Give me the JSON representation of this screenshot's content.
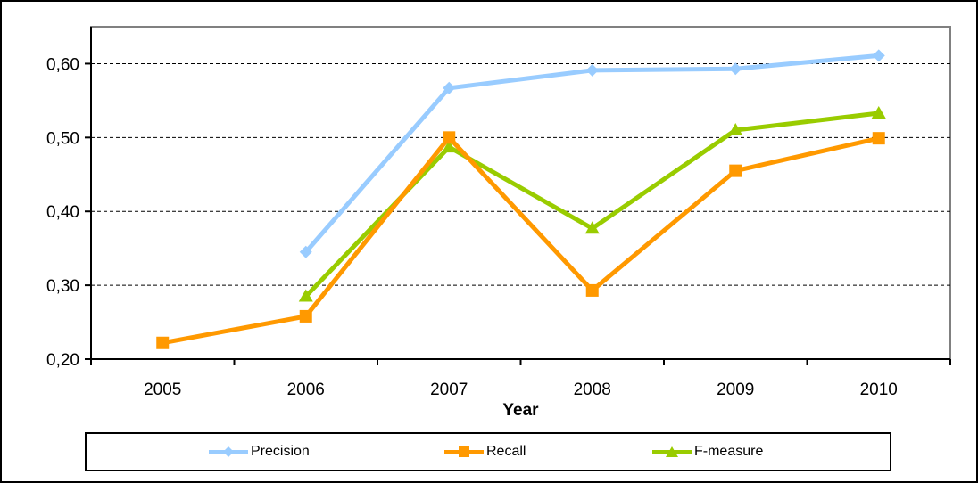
{
  "chart": {
    "background": "#FFFFFF",
    "plot_border_color": "#808080",
    "axis_color": "#000000",
    "gridline_color": "#000000",
    "outer_border_color": "#000000"
  },
  "chart_data": {
    "type": "line",
    "title": "",
    "xlabel": "Year",
    "ylabel": "",
    "categories": [
      "2005",
      "2006",
      "2007",
      "2008",
      "2009",
      "2010"
    ],
    "series": [
      {
        "name": "Precision",
        "color": "#99CCFF",
        "marker": "diamond",
        "values": [
          null,
          0.345,
          0.567,
          0.591,
          0.593,
          0.611
        ]
      },
      {
        "name": "Recall",
        "color": "#FF9900",
        "marker": "square",
        "values": [
          0.222,
          0.258,
          0.5,
          0.293,
          0.455,
          0.499
        ]
      },
      {
        "name": "F-measure",
        "color": "#99CC00",
        "marker": "triangle",
        "values": [
          null,
          0.285,
          0.487,
          0.377,
          0.51,
          0.533
        ]
      }
    ],
    "ylim": [
      0.2,
      0.65
    ],
    "yticks": [
      {
        "value": 0.2,
        "label": "0,20"
      },
      {
        "value": 0.3,
        "label": "0,30"
      },
      {
        "value": 0.4,
        "label": "0,40"
      },
      {
        "value": 0.5,
        "label": "0,50"
      },
      {
        "value": 0.6,
        "label": "0,60"
      }
    ],
    "grid": "horizontal-dashed",
    "legend_position": "bottom"
  }
}
